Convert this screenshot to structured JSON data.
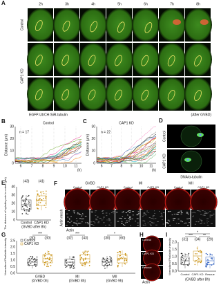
{
  "A": {
    "label": "A",
    "times": [
      "2h",
      "3h",
      "4h",
      "5h",
      "6h",
      "7h",
      "8h"
    ],
    "row_labels": [
      "Control",
      "CAP1 KD"
    ],
    "legend_green": "EGFP-UtrCH",
    "legend_red": "/SiR-tubulin",
    "note": "(After GVBD)"
  },
  "B": {
    "label": "B",
    "title": "Control",
    "n": "n = 17",
    "y_label": "Distance (µm)",
    "yticks": [
      "0",
      "10",
      "20",
      "30"
    ],
    "xticks": [
      "6",
      "7",
      "8",
      "9",
      "10",
      "11"
    ],
    "x_label": "(h)"
  },
  "C": {
    "label": "C",
    "title": "CAP1 KD",
    "n": "n = 22",
    "y_label": "Distance (µm)",
    "yticks": [
      "0",
      "10",
      "20",
      "30"
    ],
    "xticks": [
      "6",
      "7",
      "8",
      "9",
      "10",
      "11"
    ],
    "x_label": "(h)"
  },
  "D": {
    "label": "D",
    "rows": [
      "Control",
      "CAP1 KD"
    ],
    "legend": "DNA/α-tubulin"
  },
  "E": {
    "label": "E",
    "y_label": "The distance of spindle pole to cortex (µm)",
    "yticks": [
      "0",
      "10",
      "20",
      "30",
      "40"
    ],
    "groups": [
      "Control",
      "CAP1 KD"
    ],
    "counts": [
      "(43)",
      "(41)"
    ],
    "note": "(GVBD after 8h)"
  },
  "F": {
    "label": "F",
    "stages": [
      "GVBD",
      "MI",
      "MII"
    ],
    "groups": [
      "Control",
      "CAP1 KD"
    ],
    "row_label": "Actin mesh",
    "stain": "Actin"
  },
  "G": {
    "label": "G",
    "y_label": "Normalized Phalloidin intensity",
    "yticks": [
      "0.0",
      "0.5",
      "1.0",
      "1.5",
      "2.0",
      "2.5"
    ],
    "legend": [
      "Control",
      "CAP1 KD"
    ],
    "stages": [
      "GVBD",
      "MI",
      "MII"
    ],
    "times": [
      "(GVBD 0h)",
      "(GVBD 8h)",
      "(GVBD 9h)"
    ],
    "counts": [
      "(30)",
      "(30)",
      "(32)",
      "(43)",
      "(30)",
      "(60)"
    ],
    "sig": [
      "***",
      "***",
      "*"
    ]
  },
  "H": {
    "label": "H",
    "rows": [
      "Control",
      "CAP1 KD",
      "Rescue"
    ],
    "stain": "Actin"
  },
  "I": {
    "label": "I",
    "y_label": "Normalized Phalloidin intensity",
    "yticks": [
      "0.0",
      "0.5",
      "1.0",
      "1.5",
      "2.0"
    ],
    "groups": [
      "Control",
      "CAP1 KD",
      "Rescue"
    ],
    "counts": [
      "(31)",
      "(34)",
      "(29)"
    ],
    "sig": [
      "*",
      "***",
      "**"
    ],
    "note": "(GVBD after 8h)"
  }
}
